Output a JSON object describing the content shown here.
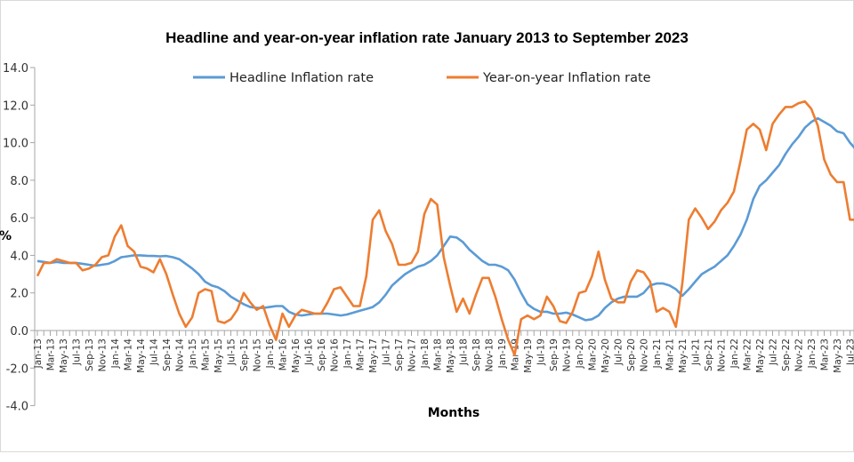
{
  "chart_data": {
    "type": "line",
    "title": "Headline and year-on-year inflation rate January 2013 to September 2023",
    "xlabel": "Months",
    "ylabel": "%",
    "ylim": [
      -4,
      14
    ],
    "yticks": [
      "-4.0",
      "-2.0",
      "0.0",
      "2.0",
      "4.0",
      "6.0",
      "8.0",
      "10.0",
      "12.0",
      "14.0"
    ],
    "grid": false,
    "legend_placement": "top",
    "start_month": "Jan-13",
    "end_month": "Sep-23",
    "series": [
      {
        "name": "Headline Inflation rate",
        "color": "#5B9BD5",
        "values": [
          3.7,
          3.65,
          3.6,
          3.65,
          3.6,
          3.6,
          3.6,
          3.55,
          3.5,
          3.45,
          3.5,
          3.55,
          3.7,
          3.9,
          3.95,
          4.0,
          4.0,
          3.98,
          3.97,
          3.95,
          3.97,
          3.9,
          3.8,
          3.55,
          3.3,
          3.0,
          2.6,
          2.4,
          2.3,
          2.1,
          1.8,
          1.6,
          1.4,
          1.25,
          1.2,
          1.2,
          1.25,
          1.3,
          1.3,
          1.0,
          0.85,
          0.8,
          0.85,
          0.9,
          0.9,
          0.9,
          0.85,
          0.8,
          0.85,
          0.95,
          1.05,
          1.15,
          1.25,
          1.5,
          1.9,
          2.4,
          2.7,
          3.0,
          3.2,
          3.4,
          3.5,
          3.7,
          4.0,
          4.5,
          5.0,
          4.95,
          4.7,
          4.3,
          4.0,
          3.7,
          3.5,
          3.5,
          3.4,
          3.2,
          2.7,
          2.0,
          1.4,
          1.15,
          1.0,
          1.0,
          0.9,
          0.9,
          0.95,
          0.85,
          0.7,
          0.55,
          0.6,
          0.8,
          1.2,
          1.5,
          1.7,
          1.8,
          1.8,
          1.8,
          2.0,
          2.4,
          2.5,
          2.5,
          2.4,
          2.2,
          1.85,
          2.2,
          2.6,
          3.0,
          3.2,
          3.4,
          3.7,
          4.0,
          4.5,
          5.1,
          5.9,
          7.0,
          7.7,
          8.0,
          8.4,
          8.8,
          9.4,
          9.9,
          10.3,
          10.8,
          11.1,
          11.3,
          11.1,
          10.9,
          10.6,
          10.5,
          10.0,
          9.6,
          9.3
        ]
      },
      {
        "name": "Year-on-year Inflation rate",
        "color": "#ED7D31",
        "values": [
          2.9,
          3.6,
          3.6,
          3.8,
          3.7,
          3.6,
          3.6,
          3.2,
          3.3,
          3.5,
          3.9,
          4.0,
          5.0,
          5.6,
          4.5,
          4.2,
          3.4,
          3.3,
          3.1,
          3.8,
          3.0,
          1.9,
          0.9,
          0.2,
          0.7,
          2.0,
          2.2,
          2.1,
          0.5,
          0.4,
          0.6,
          1.1,
          2.0,
          1.5,
          1.1,
          1.3,
          0.3,
          -0.5,
          0.9,
          0.2,
          0.8,
          1.1,
          1.0,
          0.9,
          0.9,
          1.5,
          2.2,
          2.3,
          1.8,
          1.3,
          1.3,
          2.9,
          5.9,
          6.4,
          5.3,
          4.6,
          3.5,
          3.5,
          3.6,
          4.2,
          6.2,
          7.0,
          6.7,
          3.9,
          2.4,
          1.0,
          1.7,
          0.9,
          1.9,
          2.8,
          2.8,
          1.8,
          0.6,
          -0.5,
          -1.3,
          0.6,
          0.8,
          0.6,
          0.8,
          1.8,
          1.3,
          0.5,
          0.4,
          1.0,
          2.0,
          2.1,
          2.9,
          4.2,
          2.7,
          1.7,
          1.5,
          1.5,
          2.6,
          3.2,
          3.1,
          2.6,
          1.0,
          1.2,
          1.0,
          0.2,
          2.5,
          5.9,
          6.5,
          6.0,
          5.4,
          5.8,
          6.4,
          6.8,
          7.4,
          9.0,
          10.7,
          11.0,
          10.7,
          9.6,
          11.0,
          11.5,
          11.9,
          11.9,
          12.1,
          12.2,
          11.8,
          10.9,
          9.1,
          8.3,
          7.9,
          7.9,
          5.9,
          5.9,
          5.9
        ]
      }
    ]
  }
}
